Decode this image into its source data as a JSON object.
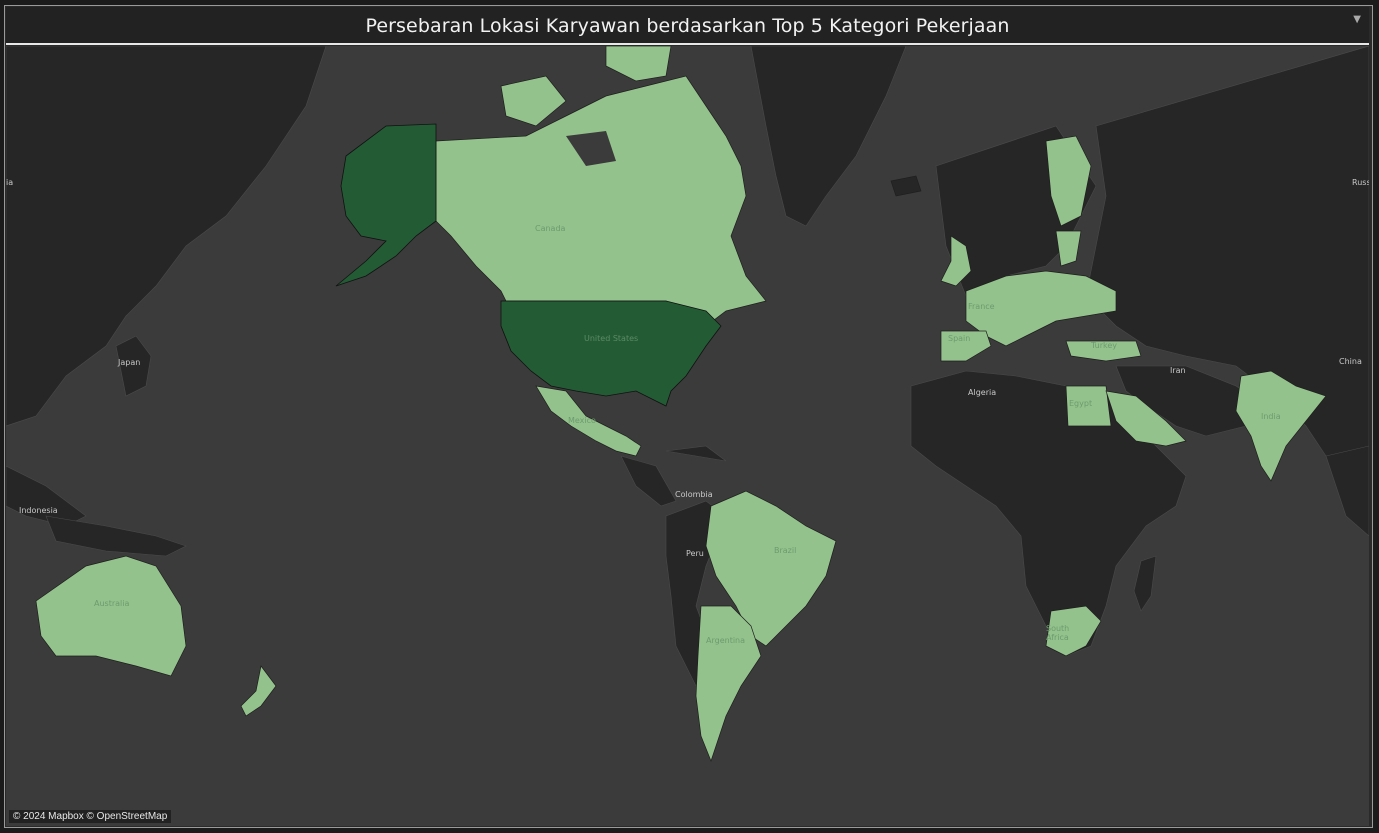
{
  "title": "Persebaran Lokasi Karyawan berdasarkan Top 5 Kategori Pekerjaan",
  "attribution": "© 2024 Mapbox © OpenStreetMap",
  "colors": {
    "background": "#3b3b3b",
    "land_neutral": "#262626",
    "highlight_light": "#94c28c",
    "highlight_dark": "#235b35"
  },
  "labels": {
    "canada": "Canada",
    "united_states": "United States",
    "mexico": "Mexico",
    "colombia": "Colombia",
    "peru": "Peru",
    "brazil": "Brazil",
    "argentina": "Argentina",
    "algeria": "Algeria",
    "egypt": "Egypt",
    "iran": "Iran",
    "india": "India",
    "china": "China",
    "turkey": "Turkey",
    "france": "France",
    "spain": "Spain",
    "south_africa": "South Africa",
    "japan": "Japan",
    "indonesia": "Indonesia",
    "australia": "Australia",
    "russia": "Russ",
    "edge_left": "ia"
  }
}
